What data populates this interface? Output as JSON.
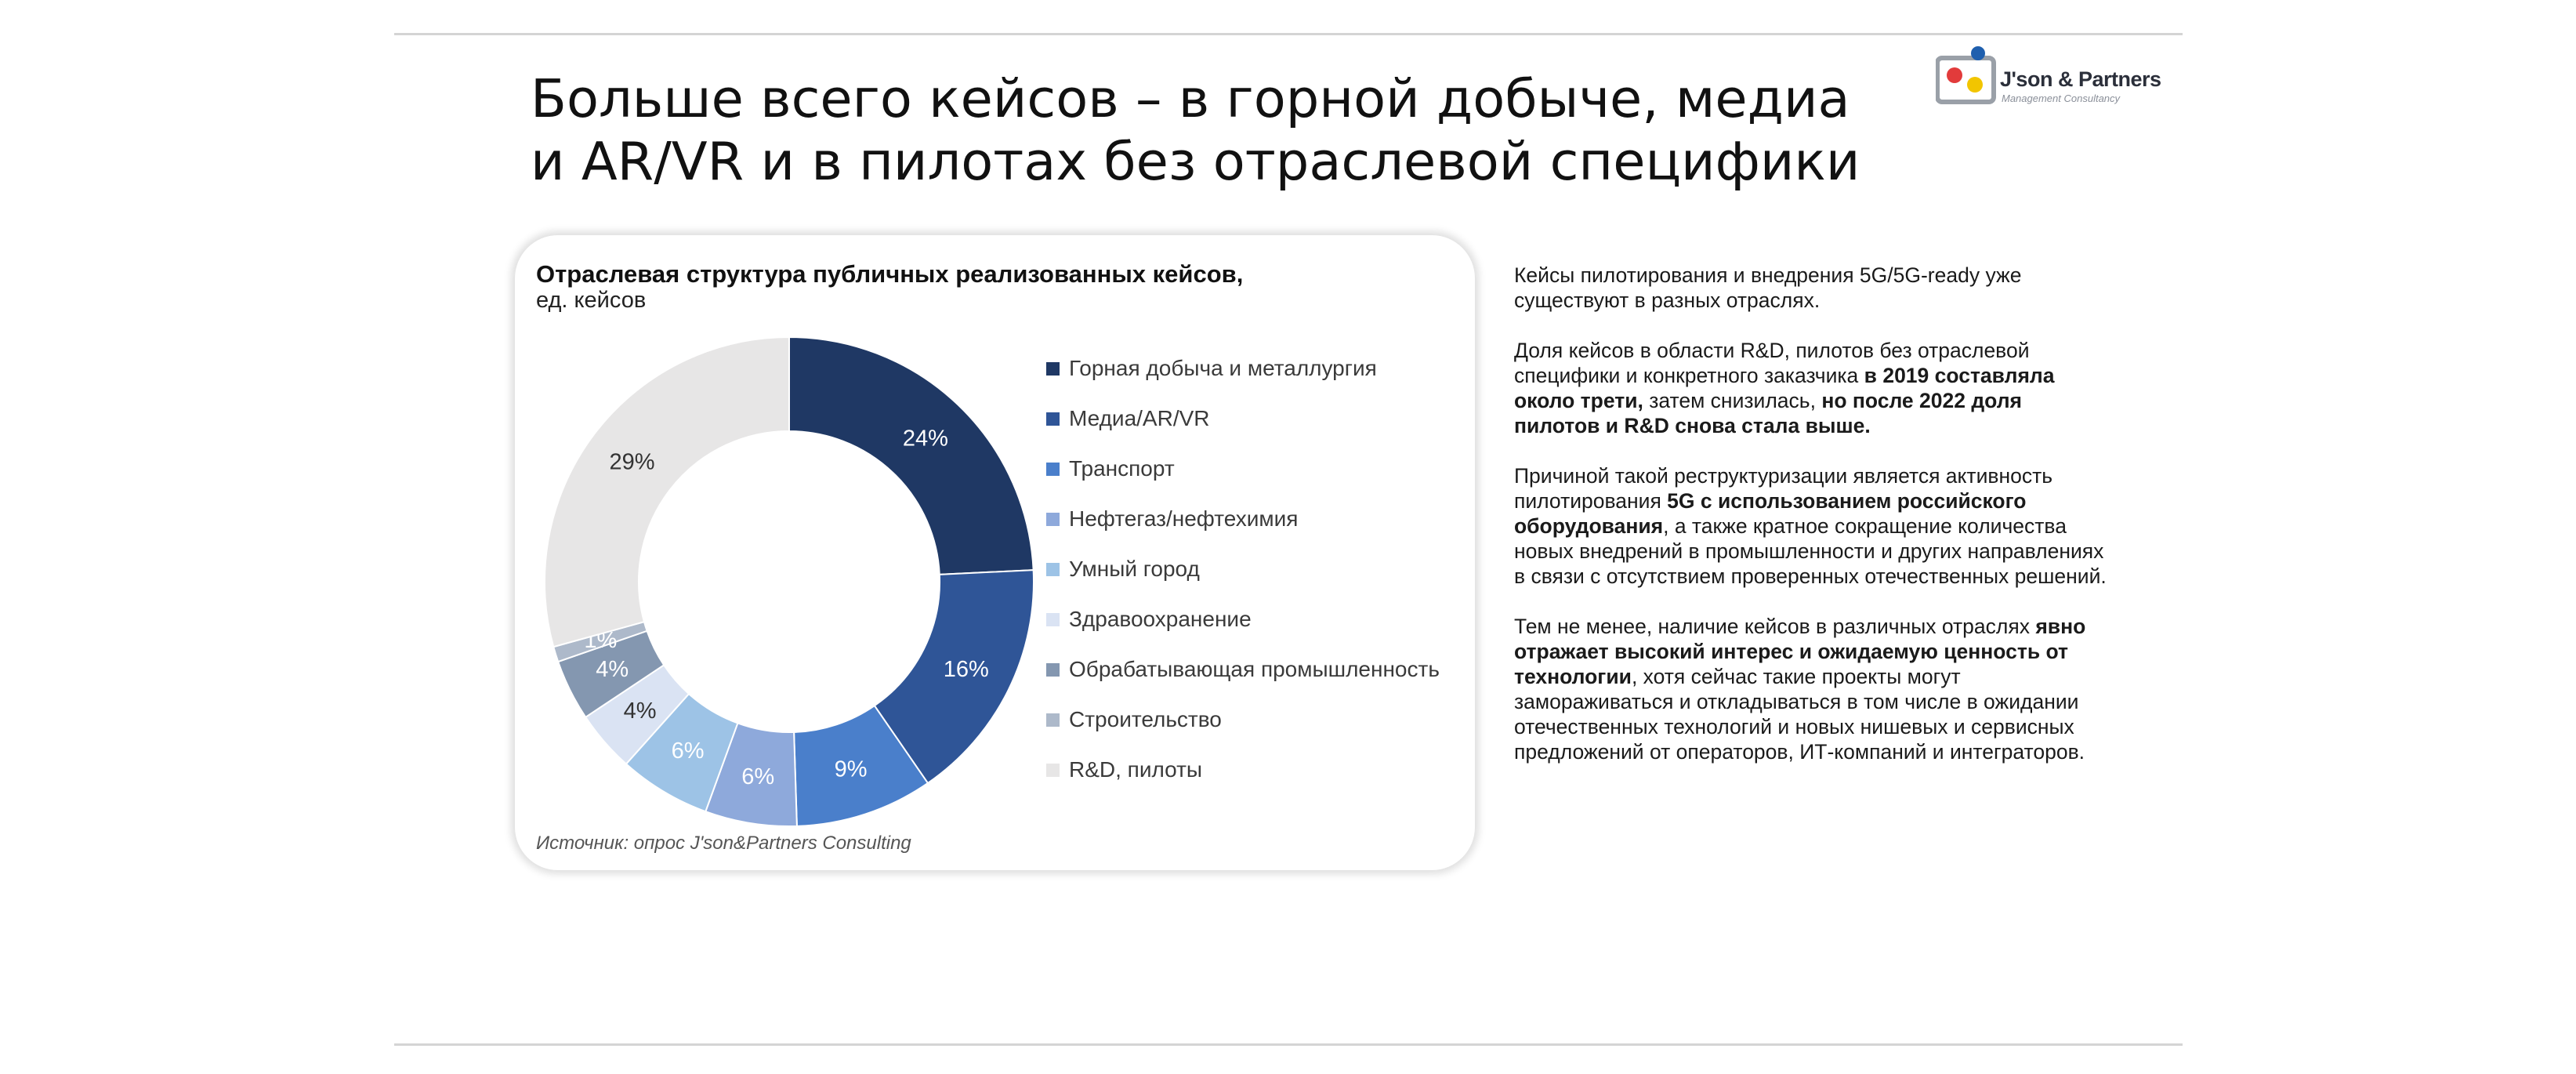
{
  "slide": {
    "title_line1": "Больше всего кейсов – в горной добыче, медиа",
    "title_line2": "и AR/VR и в пилотах без отраслевой специфики"
  },
  "logo": {
    "name": "J'son & Partners",
    "tagline": "Management Consultancy",
    "colors": [
      "#1f5fae",
      "#e23b3b",
      "#f2c500"
    ]
  },
  "chart": {
    "title": "Отраслевая структура публичных реализованных кейсов,",
    "subtitle": "ед. кейсов",
    "source": "Источник: опрос J'son&Partners Consulting"
  },
  "chart_data": {
    "type": "pie",
    "title": "Отраслевая структура публичных реализованных кейсов,",
    "subtitle": "ед. кейсов",
    "unit": "%",
    "legend_position": "right",
    "slices": [
      {
        "name": "Горная добыча и металлургия",
        "value": 24,
        "label": "24%",
        "color": "#1f3864",
        "label_color": "#ffffff"
      },
      {
        "name": "Медиа/AR/VR",
        "value": 16,
        "label": "16%",
        "color": "#2f5597",
        "label_color": "#ffffff"
      },
      {
        "name": "Транспорт",
        "value": 9,
        "label": "9%",
        "color": "#4a7fcb",
        "label_color": "#ffffff"
      },
      {
        "name": "Нефтегаз/нефтехимия",
        "value": 6,
        "label": "6%",
        "color": "#8ea9db",
        "label_color": "#ffffff"
      },
      {
        "name": "Умный город",
        "value": 6,
        "label": "6%",
        "color": "#9dc3e6",
        "label_color": "#ffffff"
      },
      {
        "name": "Здравоохранение",
        "value": 4,
        "label": "4%",
        "color": "#dae3f3",
        "label_color": "#333333"
      },
      {
        "name": "Обрабатывающая промышленность",
        "value": 4,
        "label": "4%",
        "color": "#8497b0",
        "label_color": "#ffffff"
      },
      {
        "name": "Строительство",
        "value": 1,
        "label": "1%",
        "color": "#adb9ca",
        "label_color": "#ffffff"
      },
      {
        "name": "R&D, пилоты",
        "value": 29,
        "label": "29%",
        "color": "#e7e6e6",
        "label_color": "#333333"
      }
    ]
  },
  "sidebar": {
    "paragraphs": [
      [
        {
          "text": "Кейсы пилотирования и внедрения 5G/5G-ready уже существуют в разных отраслях.",
          "bold": false
        }
      ],
      [
        {
          "text": "Доля кейсов в области R&D, пилотов без отраслевой специфики и конкретного заказчика ",
          "bold": false
        },
        {
          "text": "в 2019 составляла около трети,",
          "bold": true
        },
        {
          "text": " затем  снизилась, ",
          "bold": false
        },
        {
          "text": "но после 2022 доля пилотов и R&D снова стала выше.",
          "bold": true
        }
      ],
      [
        {
          "text": "Причиной такой реструктуризации является активность пилотирования ",
          "bold": false
        },
        {
          "text": "5G с использованием российского оборудования",
          "bold": true
        },
        {
          "text": ", а также кратное сокращение количества новых внедрений в промышленности и других направлениях в связи с отсутствием проверенных отечественных решений.",
          "bold": false
        }
      ],
      [
        {
          "text": "Тем не менее, наличие кейсов в различных отраслях ",
          "bold": false
        },
        {
          "text": "явно отражает высокий интерес и ожидаемую ценность от технологии",
          "bold": true
        },
        {
          "text": ", хотя сейчас такие проекты могут замораживаться и откладываться в том числе в ожидании отечественных технологий и новых нишевых и сервисных предложений от операторов, ИТ-компаний и интеграторов.",
          "bold": false
        }
      ]
    ]
  }
}
